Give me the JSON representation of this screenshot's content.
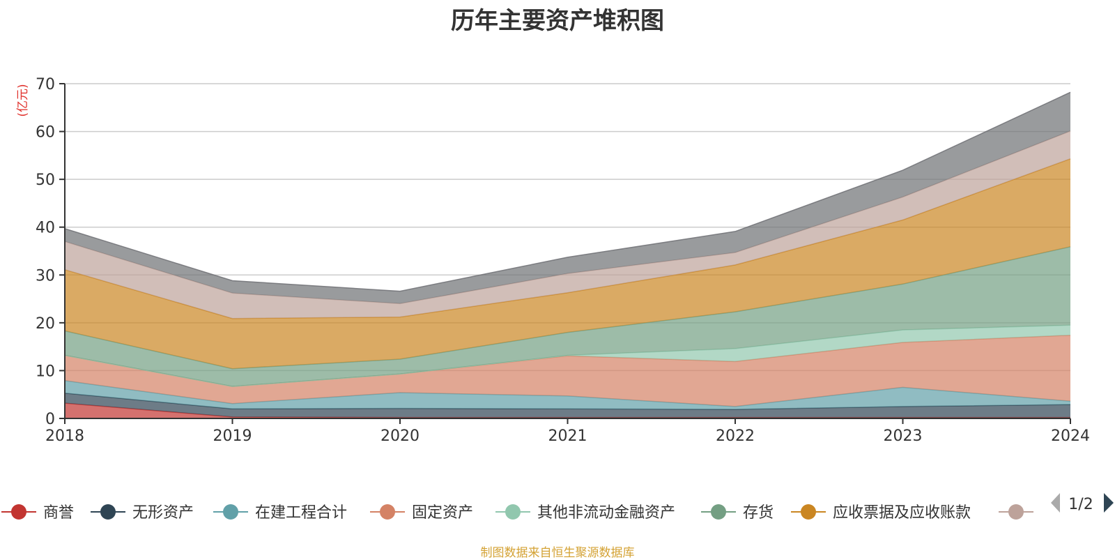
{
  "chart_data": {
    "type": "area",
    "title": "历年主要资产堆积图",
    "ylabel": "(亿元)",
    "xlabel": "",
    "ylim": [
      0,
      70
    ],
    "yticks": [
      0,
      10,
      20,
      30,
      40,
      50,
      60,
      70
    ],
    "grid": true,
    "stacked": true,
    "categories": [
      "2018",
      "2019",
      "2020",
      "2021",
      "2022",
      "2023",
      "2024"
    ],
    "series": [
      {
        "name": "商誉",
        "color": "#c23531",
        "values": [
          3.2,
          0.3,
          0.2,
          0.2,
          0.2,
          0.2,
          0.2
        ]
      },
      {
        "name": "无形资产",
        "color": "#2f4554",
        "values": [
          2.1,
          1.7,
          1.9,
          1.8,
          1.7,
          2.3,
          2.7
        ]
      },
      {
        "name": "在建工程合计",
        "color": "#61a0a8",
        "values": [
          2.6,
          1.1,
          3.3,
          2.7,
          0.6,
          4.0,
          0.7
        ]
      },
      {
        "name": "固定资产",
        "color": "#d48265",
        "values": [
          5.3,
          3.6,
          3.9,
          8.4,
          9.4,
          9.4,
          13.8
        ]
      },
      {
        "name": "其他非流动金融资产",
        "color": "#91c7ae",
        "values": [
          0,
          0,
          0,
          0.1,
          2.7,
          2.6,
          2.1
        ]
      },
      {
        "name": "存货",
        "color": "#749f83",
        "values": [
          5.1,
          3.7,
          3.1,
          4.8,
          7.7,
          9.6,
          16.4
        ]
      },
      {
        "name": "应收票据及应收账款",
        "color": "#ca8622",
        "values": [
          12.8,
          10.5,
          8.8,
          8.3,
          9.8,
          13.4,
          18.4
        ]
      },
      {
        "name": "",
        "color": "#bda29a",
        "values": [
          5.9,
          5.3,
          2.8,
          4.0,
          2.6,
          4.8,
          5.8
        ]
      },
      {
        "name": "",
        "color": "#6e7074",
        "values": [
          2.7,
          2.6,
          2.6,
          3.4,
          4.4,
          5.6,
          8.1
        ]
      }
    ],
    "legend_position": "bottom",
    "legend_page": "1/2"
  },
  "footer": "制图数据来自恒生聚源数据库"
}
